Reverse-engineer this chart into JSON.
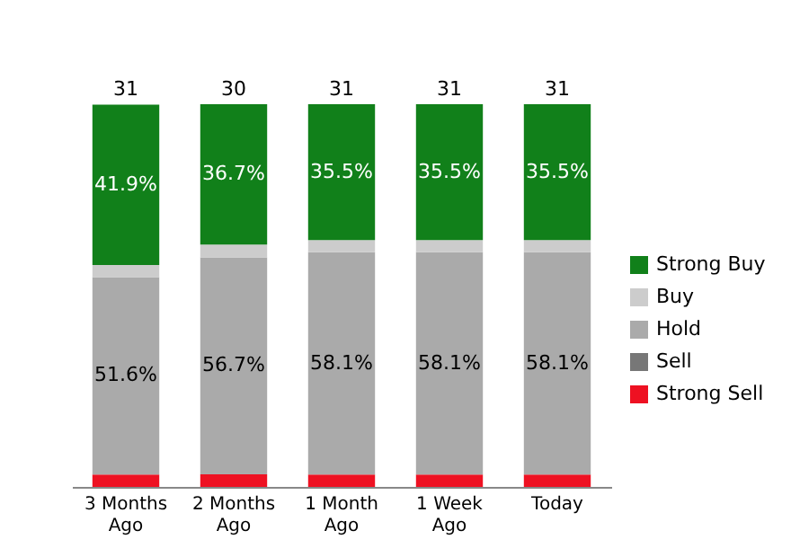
{
  "chart_data": {
    "type": "bar",
    "stacked": true,
    "categories": [
      "3 Months Ago",
      "2 Months Ago",
      "1 Month Ago",
      "1 Week Ago",
      "Today"
    ],
    "series": [
      {
        "name": "Strong Sell",
        "color": "#ee1122",
        "values": [
          3.2,
          3.3,
          3.2,
          3.2,
          3.2
        ]
      },
      {
        "name": "Sell",
        "color": "#777777",
        "values": [
          0,
          0,
          0,
          0,
          0
        ]
      },
      {
        "name": "Hold",
        "color": "#aaaaaa",
        "values": [
          51.6,
          56.7,
          58.1,
          58.1,
          58.1
        ],
        "value_labels": [
          "51.6%",
          "56.7%",
          "58.1%",
          "58.1%",
          "58.1%"
        ]
      },
      {
        "name": "Buy",
        "color": "#cccccc",
        "values": [
          3.2,
          3.3,
          3.2,
          3.2,
          3.2
        ]
      },
      {
        "name": "Strong Buy",
        "color": "#11801a",
        "values": [
          41.9,
          36.7,
          35.5,
          35.5,
          35.5
        ],
        "value_labels": [
          "41.9%",
          "36.7%",
          "35.5%",
          "35.5%",
          "35.5%"
        ]
      }
    ],
    "annotations": [
      "31",
      "30",
      "31",
      "31",
      "31"
    ],
    "legend": "right",
    "grid": false
  }
}
